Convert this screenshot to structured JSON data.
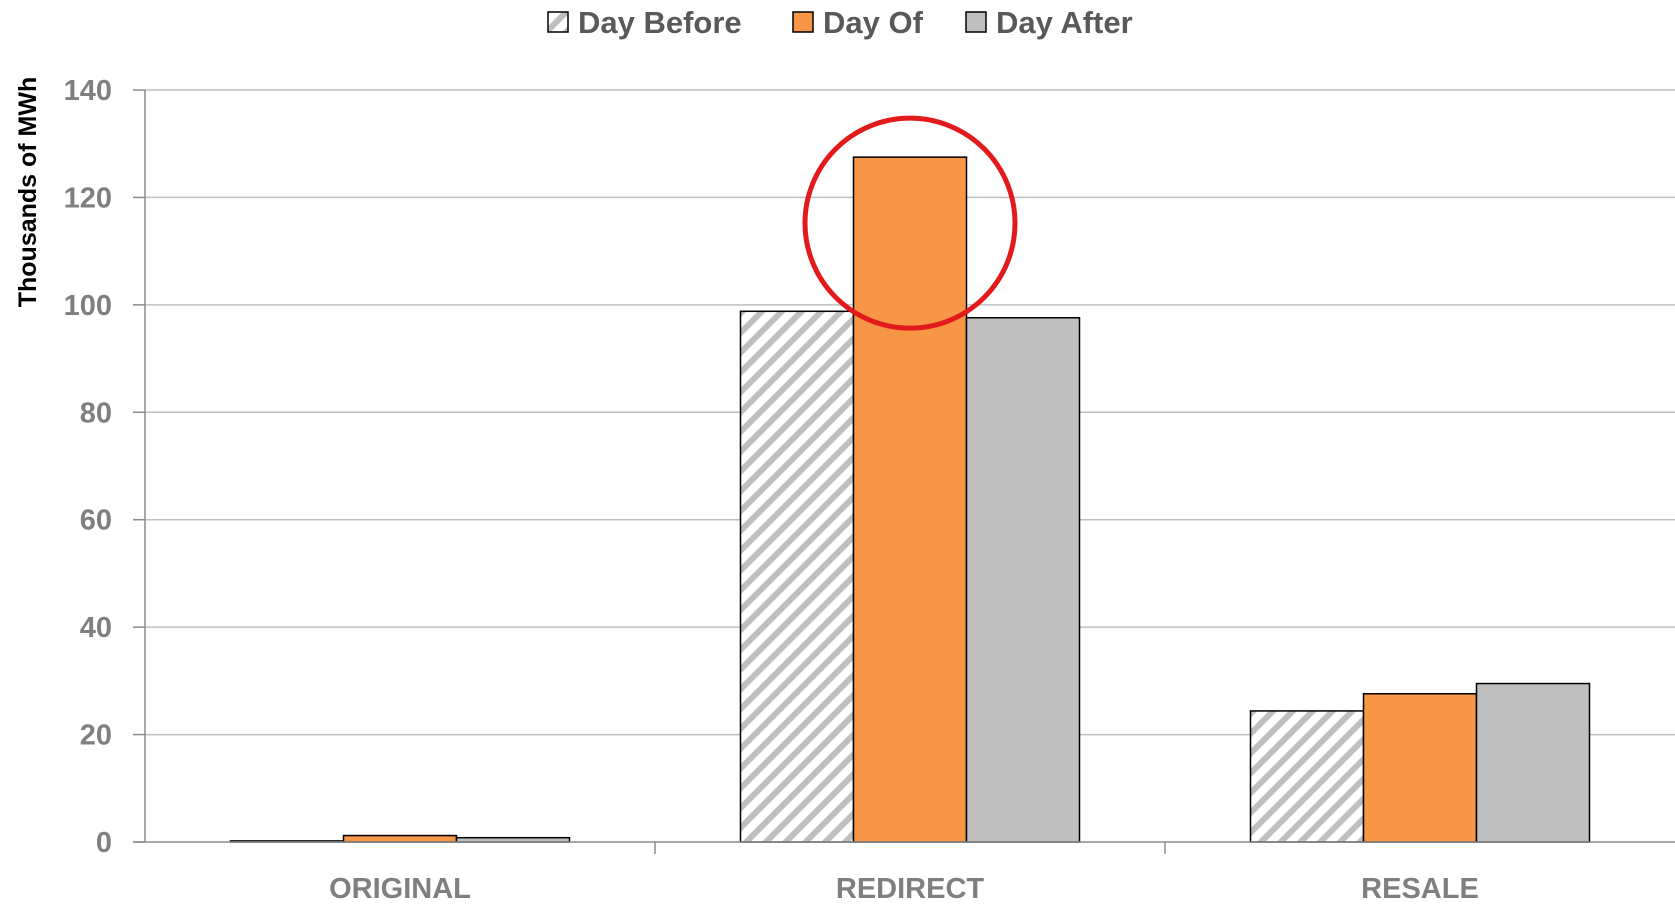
{
  "chart_data": {
    "type": "bar",
    "categories": [
      "ORIGINAL",
      "REDIRECT",
      "RESALE"
    ],
    "series": [
      {
        "name": "Day Before",
        "values": [
          0.2,
          98.8,
          24.4
        ],
        "fill": "hatch",
        "color": "#bfbfbf"
      },
      {
        "name": "Day Of",
        "values": [
          1.2,
          127.5,
          27.6
        ],
        "fill": "solid",
        "color": "#f79646"
      },
      {
        "name": "Day After",
        "values": [
          0.8,
          97.6,
          29.5
        ],
        "fill": "solid",
        "color": "#bfbfbf"
      }
    ],
    "ylabel": "Thousands of MWh",
    "ylim": [
      0,
      140
    ],
    "yticks": [
      "0",
      "20",
      "40",
      "60",
      "80",
      "100",
      "120",
      "140"
    ],
    "grid": true,
    "legend_position": "top",
    "highlight": {
      "category": "REDIRECT",
      "series": "Day Of",
      "shape": "circle",
      "color": "#e31a1c"
    }
  }
}
